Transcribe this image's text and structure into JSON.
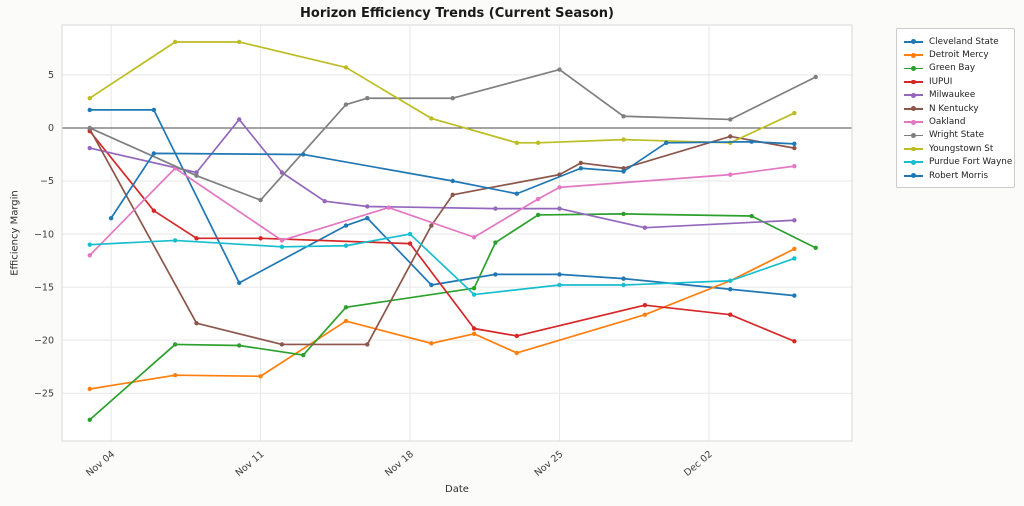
{
  "chart_data": {
    "type": "line",
    "title": "Horizon Efficiency Trends (Current Season)",
    "xlabel": "Date",
    "ylabel": "Efficiency Margin",
    "x_note": "x values are day indexes where Nov 01 = 1, so Nov 04 = 4 and Dec 02 = 32; each point is a game date",
    "x_domain": [
      1.7,
      38.7
    ],
    "y_domain": [
      -29.5,
      9.7
    ],
    "x_ticks": [
      {
        "day": 4,
        "label": "Nov 04"
      },
      {
        "day": 11,
        "label": "Nov 11"
      },
      {
        "day": 18,
        "label": "Nov 18"
      },
      {
        "day": 25,
        "label": "Nov 25"
      },
      {
        "day": 32,
        "label": "Dec 02"
      }
    ],
    "y_ticks": [
      5,
      0,
      -5,
      -10,
      -15,
      -20,
      -25
    ],
    "grid": true,
    "zero_line": true,
    "legend_position": "outside-right",
    "series": [
      {
        "name": "Cleveland State",
        "color": "#1f77b4",
        "points": [
          [
            3,
            1.7
          ],
          [
            6,
            1.7
          ],
          [
            10,
            -14.6
          ],
          [
            15,
            -9.2
          ],
          [
            16,
            -8.5
          ],
          [
            19,
            -14.8
          ],
          [
            22,
            -13.8
          ],
          [
            25,
            -13.8
          ],
          [
            28,
            -14.2
          ],
          [
            33,
            -15.2
          ],
          [
            36,
            -15.8
          ]
        ]
      },
      {
        "name": "Detroit Mercy",
        "color": "#ff7f0e",
        "points": [
          [
            3,
            -24.6
          ],
          [
            7,
            -23.3
          ],
          [
            11,
            -23.4
          ],
          [
            15,
            -18.2
          ],
          [
            19,
            -20.3
          ],
          [
            21,
            -19.4
          ],
          [
            23,
            -21.2
          ],
          [
            29,
            -17.6
          ],
          [
            33,
            -14.4
          ],
          [
            36,
            -11.4
          ]
        ]
      },
      {
        "name": "Green Bay",
        "color": "#2ca02c",
        "points": [
          [
            3,
            -27.5
          ],
          [
            7,
            -20.4
          ],
          [
            10,
            -20.5
          ],
          [
            13,
            -21.4
          ],
          [
            15,
            -16.9
          ],
          [
            21,
            -15.1
          ],
          [
            22,
            -10.8
          ],
          [
            24,
            -8.2
          ],
          [
            28,
            -8.1
          ],
          [
            34,
            -8.3
          ],
          [
            37,
            -11.3
          ]
        ]
      },
      {
        "name": "IUPUI",
        "color": "#d62728",
        "points": [
          [
            3,
            -0.3
          ],
          [
            6,
            -7.8
          ],
          [
            8,
            -10.4
          ],
          [
            11,
            -10.4
          ],
          [
            18,
            -10.9
          ],
          [
            21,
            -18.9
          ],
          [
            23,
            -19.6
          ],
          [
            29,
            -16.7
          ],
          [
            33,
            -17.6
          ],
          [
            36,
            -20.1
          ]
        ]
      },
      {
        "name": "Milwaukee",
        "color": "#9467bd",
        "points": [
          [
            3,
            -1.9
          ],
          [
            8,
            -4.2
          ],
          [
            10,
            0.8
          ],
          [
            12,
            -4.2
          ],
          [
            14,
            -6.9
          ],
          [
            16,
            -7.4
          ],
          [
            22,
            -7.6
          ],
          [
            25,
            -7.6
          ],
          [
            29,
            -9.4
          ],
          [
            36,
            -8.7
          ]
        ]
      },
      {
        "name": "N Kentucky",
        "color": "#8c564b",
        "points": [
          [
            3,
            -0.1
          ],
          [
            8,
            -18.4
          ],
          [
            12,
            -20.4
          ],
          [
            16,
            -20.4
          ],
          [
            19,
            -9.2
          ],
          [
            20,
            -6.3
          ],
          [
            25,
            -4.4
          ],
          [
            26,
            -3.3
          ],
          [
            28,
            -3.8
          ],
          [
            33,
            -0.8
          ],
          [
            36,
            -1.9
          ]
        ]
      },
      {
        "name": "Oakland",
        "color": "#e377c2",
        "points": [
          [
            3,
            -12.0
          ],
          [
            7,
            -3.8
          ],
          [
            12,
            -10.6
          ],
          [
            17,
            -7.5
          ],
          [
            21,
            -10.3
          ],
          [
            24,
            -6.7
          ],
          [
            25,
            -5.6
          ],
          [
            33,
            -4.4
          ],
          [
            36,
            -3.6
          ]
        ]
      },
      {
        "name": "Wright State",
        "color": "#7f7f7f",
        "points": [
          [
            3,
            0.0
          ],
          [
            8,
            -4.5
          ],
          [
            11,
            -6.8
          ],
          [
            15,
            2.2
          ],
          [
            16,
            2.8
          ],
          [
            20,
            2.8
          ],
          [
            25,
            5.5
          ],
          [
            28,
            1.1
          ],
          [
            33,
            0.8
          ],
          [
            37,
            4.8
          ]
        ]
      },
      {
        "name": "Youngstown St",
        "color": "#bcbd22",
        "points": [
          [
            3,
            2.8
          ],
          [
            7,
            8.1
          ],
          [
            10,
            8.1
          ],
          [
            15,
            5.7
          ],
          [
            19,
            0.9
          ],
          [
            23,
            -1.4
          ],
          [
            24,
            -1.4
          ],
          [
            28,
            -1.1
          ],
          [
            33,
            -1.4
          ],
          [
            36,
            1.4
          ]
        ]
      },
      {
        "name": "Purdue Fort Wayne",
        "color": "#17becf",
        "points": [
          [
            3,
            -11.0
          ],
          [
            7,
            -10.6
          ],
          [
            12,
            -11.2
          ],
          [
            15,
            -11.1
          ],
          [
            18,
            -10.0
          ],
          [
            21,
            -15.7
          ],
          [
            25,
            -14.8
          ],
          [
            28,
            -14.8
          ],
          [
            33,
            -14.4
          ],
          [
            36,
            -12.3
          ]
        ]
      },
      {
        "name": "Robert Morris",
        "color": "#1f77b4",
        "points": [
          [
            4,
            -8.5
          ],
          [
            6,
            -2.4
          ],
          [
            13,
            -2.5
          ],
          [
            20,
            -5.0
          ],
          [
            23,
            -6.2
          ],
          [
            26,
            -3.8
          ],
          [
            28,
            -4.1
          ],
          [
            30,
            -1.4
          ],
          [
            34,
            -1.3
          ],
          [
            36,
            -1.5
          ]
        ]
      }
    ]
  },
  "colors": {
    "background": "#fbfbf9",
    "plot_background": "#ffffff",
    "grid": "#e7e7e7",
    "spine": "#d8d8d8",
    "zero_line": "#4a4a4a",
    "tick_label": "#3d3d3d",
    "title": "#1a1a1a",
    "legend_border": "#cccccc"
  }
}
